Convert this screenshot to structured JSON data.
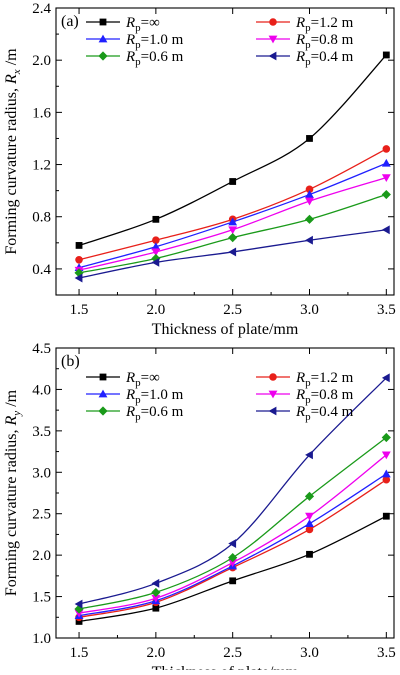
{
  "figure": {
    "panels": [
      "a",
      "b"
    ]
  },
  "chart_data": [
    {
      "type": "line",
      "panel_label": "(a)",
      "x": [
        1.5,
        2.0,
        2.5,
        3.0,
        3.5
      ],
      "x_tick_labels": [
        "1.5",
        "2.0",
        "2.5",
        "3.0",
        "3.5"
      ],
      "xlim": [
        1.35,
        3.55
      ],
      "xlabel": "Thickness of plate/mm",
      "ylabel_parts": [
        "Forming curvature radius, ",
        "R",
        "x",
        " /m"
      ],
      "y_ticks": [
        0.4,
        0.8,
        1.2,
        1.6,
        2.0,
        2.4
      ],
      "y_tick_labels": [
        "0.4",
        "0.8",
        "1.2",
        "1.6",
        "2.0",
        "2.4"
      ],
      "ylim": [
        0.2,
        2.4
      ],
      "grid": false,
      "legend_columns": 2,
      "legend_placement": "top-left",
      "series": [
        {
          "legend": [
            "R",
            "p",
            "=∞"
          ],
          "color": "#000000",
          "marker": "square",
          "values": [
            0.58,
            0.78,
            1.07,
            1.4,
            2.04
          ]
        },
        {
          "legend": [
            "R",
            "p",
            "=1.2 m"
          ],
          "color": "#e8201a",
          "marker": "circle",
          "values": [
            0.47,
            0.62,
            0.78,
            1.01,
            1.32
          ]
        },
        {
          "legend": [
            "R",
            "p",
            "=1.0 m"
          ],
          "color": "#2020ff",
          "marker": "triangle-up",
          "values": [
            0.41,
            0.57,
            0.76,
            0.97,
            1.21
          ]
        },
        {
          "legend": [
            "R",
            "p",
            "=0.8 m"
          ],
          "color": "#ee00ee",
          "marker": "triangle-down",
          "values": [
            0.39,
            0.53,
            0.7,
            0.92,
            1.1
          ]
        },
        {
          "legend": [
            "R",
            "p",
            "=0.6 m"
          ],
          "color": "#1a9a1a",
          "marker": "diamond",
          "values": [
            0.37,
            0.48,
            0.64,
            0.78,
            0.97
          ]
        },
        {
          "legend": [
            "R",
            "p",
            "=0.4 m"
          ],
          "color": "#1a1a90",
          "marker": "triangle-left",
          "values": [
            0.33,
            0.45,
            0.53,
            0.62,
            0.7
          ]
        }
      ]
    },
    {
      "type": "line",
      "panel_label": "(b)",
      "x": [
        1.5,
        2.0,
        2.5,
        3.0,
        3.5
      ],
      "x_tick_labels": [
        "1.5",
        "2.0",
        "2.5",
        "3.0",
        "3.5"
      ],
      "xlim": [
        1.35,
        3.55
      ],
      "xlabel": "Thickness of plate/mm",
      "ylabel_parts": [
        "Forming curvature radius, ",
        "R",
        "y",
        " /m"
      ],
      "y_ticks": [
        1.0,
        1.5,
        2.0,
        2.5,
        3.0,
        3.5,
        4.0,
        4.5
      ],
      "y_tick_labels": [
        "1.0",
        "1.5",
        "2.0",
        "2.5",
        "3.0",
        "3.5",
        "4.0",
        "4.5"
      ],
      "ylim": [
        1.0,
        4.5
      ],
      "grid": false,
      "legend_columns": 2,
      "legend_placement": "top-left",
      "series": [
        {
          "legend": [
            "R",
            "p",
            "=∞"
          ],
          "color": "#000000",
          "marker": "square",
          "values": [
            1.2,
            1.36,
            1.69,
            2.01,
            2.47
          ]
        },
        {
          "legend": [
            "R",
            "p",
            "=1.2 m"
          ],
          "color": "#e8201a",
          "marker": "circle",
          "values": [
            1.25,
            1.43,
            1.85,
            2.31,
            2.91
          ]
        },
        {
          "legend": [
            "R",
            "p",
            "=1.0 m"
          ],
          "color": "#2020ff",
          "marker": "triangle-up",
          "values": [
            1.27,
            1.45,
            1.87,
            2.38,
            2.98
          ]
        },
        {
          "legend": [
            "R",
            "p",
            "=0.8 m"
          ],
          "color": "#ee00ee",
          "marker": "triangle-down",
          "values": [
            1.3,
            1.48,
            1.91,
            2.47,
            3.21
          ]
        },
        {
          "legend": [
            "R",
            "p",
            "=0.6 m"
          ],
          "color": "#1a9a1a",
          "marker": "diamond",
          "values": [
            1.35,
            1.55,
            1.97,
            2.71,
            3.42
          ]
        },
        {
          "legend": [
            "R",
            "p",
            "=0.4 m"
          ],
          "color": "#1a1a90",
          "marker": "triangle-left",
          "values": [
            1.41,
            1.66,
            2.14,
            3.21,
            4.14
          ]
        }
      ]
    }
  ]
}
